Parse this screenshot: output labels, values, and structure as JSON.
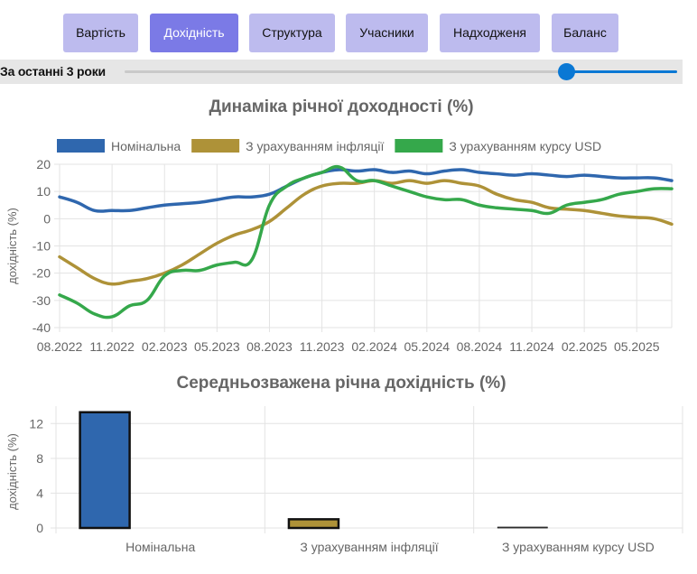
{
  "tabs": [
    {
      "label": "Вартість",
      "active": false
    },
    {
      "label": "Дохідність",
      "active": true
    },
    {
      "label": "Структура",
      "active": false
    },
    {
      "label": "Учасники",
      "active": false
    },
    {
      "label": "Надходженя",
      "active": false
    },
    {
      "label": "Баланс",
      "active": false
    }
  ],
  "range": {
    "label": "За останні 3 роки",
    "value_fraction": 0.8
  },
  "colors": {
    "nominal": "#2f67ae",
    "inflation": "#ae9238",
    "usd": "#35a84b",
    "tab_active": "#7b7ae6",
    "tab": "#bdbbee",
    "slider": "#0a78d4"
  },
  "chart_data": [
    {
      "type": "line",
      "title": "Динаміка річної доходності (%)",
      "xlabel": "",
      "ylabel": "дохідність (%)",
      "ylim": [
        -40,
        20
      ],
      "y_ticks": [
        "20",
        "10",
        "0",
        "-10",
        "-20",
        "-30",
        "-40"
      ],
      "x_ticks": [
        "08.2022",
        "11.2022",
        "02.2023",
        "05.2023",
        "08.2023",
        "11.2023",
        "02.2024",
        "05.2024",
        "08.2024",
        "11.2024",
        "02.2025",
        "05.2025"
      ],
      "x_range": [
        "08.2022",
        "07.2025"
      ],
      "grid": true,
      "legend_position": "top",
      "x": [
        "08.2022",
        "09.2022",
        "10.2022",
        "11.2022",
        "12.2022",
        "01.2023",
        "02.2023",
        "03.2023",
        "04.2023",
        "05.2023",
        "06.2023",
        "07.2023",
        "08.2023",
        "09.2023",
        "10.2023",
        "11.2023",
        "12.2023",
        "01.2024",
        "02.2024",
        "03.2024",
        "04.2024",
        "05.2024",
        "06.2024",
        "07.2024",
        "08.2024",
        "09.2024",
        "10.2024",
        "11.2024",
        "12.2024",
        "01.2025",
        "02.2025",
        "03.2025",
        "04.2025",
        "05.2025",
        "06.2025",
        "07.2025"
      ],
      "series": [
        {
          "name": "Номінальна",
          "color": "#2f67ae",
          "values": [
            8,
            6,
            3,
            3,
            3,
            4,
            5,
            5.5,
            6,
            7,
            8,
            8,
            9,
            12,
            15,
            17,
            18,
            17.5,
            18,
            17,
            17.5,
            16.5,
            17.5,
            18,
            17,
            16.5,
            16,
            16.5,
            16,
            15.5,
            16,
            15.5,
            15,
            15,
            15,
            14
          ]
        },
        {
          "name": "З урахуванням інфляції",
          "color": "#ae9238",
          "values": [
            -14,
            -18,
            -22,
            -24,
            -23,
            -22,
            -20,
            -17,
            -13,
            -9,
            -6,
            -4,
            -1,
            4,
            9,
            12,
            13,
            13,
            14,
            13,
            14,
            13,
            14,
            13,
            12,
            9,
            7,
            6,
            4,
            3.5,
            3,
            2,
            1,
            0.5,
            0,
            -2
          ]
        },
        {
          "name": "З урахуванням курсу USD",
          "color": "#35a84b",
          "values": [
            -28,
            -31,
            -35,
            -36,
            -32,
            -30,
            -21,
            -19,
            -19,
            -17,
            -16,
            -15,
            5,
            12,
            15,
            17,
            19,
            14,
            14,
            12,
            10,
            8,
            7,
            7,
            5,
            4,
            3.5,
            3,
            2,
            5,
            6,
            7,
            9,
            10,
            11,
            11
          ]
        }
      ]
    },
    {
      "type": "bar",
      "title": "Середньозважена річна дохідність (%)",
      "xlabel": "",
      "ylabel": "дохідність (%)",
      "ylim": [
        0,
        14
      ],
      "y_ticks": [
        "12",
        "8",
        "4",
        "0"
      ],
      "grid": true,
      "categories": [
        "Номінальна",
        "З урахуванням інфляції",
        "З урахуванням курсу USD"
      ],
      "values": [
        13.3,
        1,
        0.1
      ],
      "colors": [
        "#2f67ae",
        "#ae9238",
        "#b8b8b8"
      ]
    }
  ]
}
